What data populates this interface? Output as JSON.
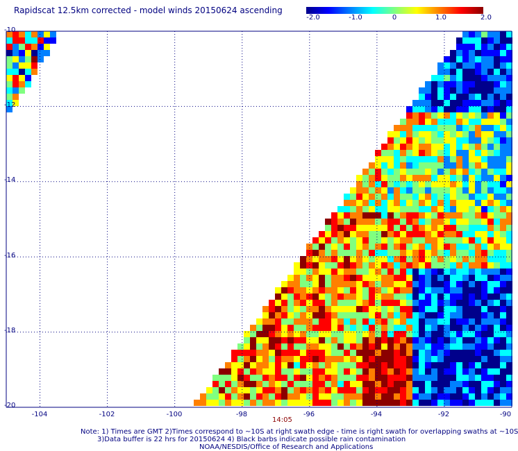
{
  "title": "Rapidscat 12.5km corrected - model winds 20150624 ascending",
  "colorbar": {
    "labels": [
      "-2.0",
      "-1.0",
      "0",
      "1.0",
      "2.0"
    ],
    "min": -2.0,
    "max": 2.0,
    "colors": [
      "#00008b",
      "#0000ff",
      "#0080ff",
      "#00ffff",
      "#80ff80",
      "#ffff00",
      "#ff8000",
      "#ff0000",
      "#8b0000"
    ]
  },
  "map": {
    "lon_range": [
      -105,
      -90
    ],
    "lat_range": [
      -20,
      -10
    ],
    "lon_labels": [
      "-104",
      "-102",
      "-100",
      "-98",
      "-96",
      "-94",
      "-92",
      "-90"
    ],
    "lat_labels": [
      "-10",
      "-12",
      "-14",
      "-16",
      "-18",
      "-20"
    ],
    "grid_color": "#000080"
  },
  "time_label": "14:05",
  "notes": {
    "line1": "Note: 1) Times are GMT 2)Times correspond to ~10S at right swath edge - time is right swath for overlapping swaths at ~10S",
    "line2": "3)Data buffer is 22 hrs for 20150624 4) Black barbs indicate possible rain contamination",
    "line3": "NOAA/NESDIS/Office of Research and Applications"
  }
}
